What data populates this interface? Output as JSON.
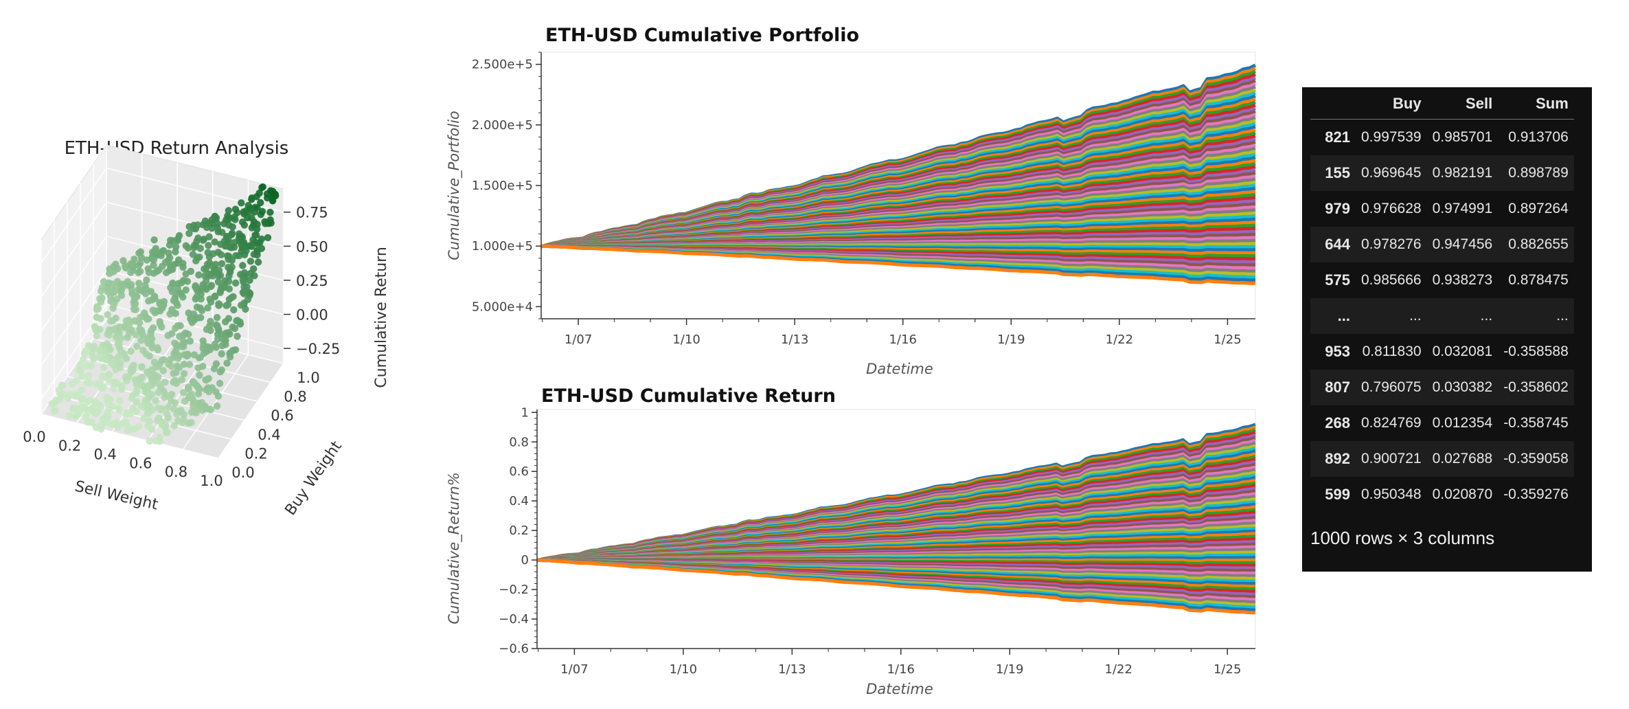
{
  "chart_data": [
    {
      "type": "scatter",
      "title": "ETH-USD Return Analysis",
      "xlabel": "Sell Weight",
      "ylabel": "Buy Weight",
      "zlabel": "Cumulative Return",
      "xticks": [
        "0.0",
        "0.2",
        "0.4",
        "0.6",
        "0.8",
        "1.0"
      ],
      "yticks": [
        "0.0",
        "0.2",
        "0.4",
        "0.6",
        "0.8",
        "1.0"
      ],
      "zticks": [
        "0.75",
        "0.50",
        "0.25",
        "0.00",
        "−0.25"
      ],
      "xlim": [
        0,
        1
      ],
      "ylim": [
        0,
        1
      ],
      "zlim": [
        -0.36,
        0.92
      ],
      "colormap": "Greens",
      "grid": true
    },
    {
      "type": "line",
      "title": "ETH-USD Cumulative Portfolio",
      "xlabel": "Datetime",
      "ylabel": "Cumulative_Portfolio",
      "xticks": [
        "1/07",
        "1/10",
        "1/13",
        "1/16",
        "1/19",
        "1/22",
        "1/25"
      ],
      "yticks": [
        "2.500e+5",
        "2.000e+5",
        "1.500e+5",
        "1.000e+5",
        "5.000e+4"
      ],
      "ylim": [
        40000,
        260000
      ],
      "series_count": 1000,
      "series_summary": {
        "x": [
          "1/06",
          "1/26"
        ],
        "max_end": 248000,
        "min_end": 69000,
        "start": 100000
      }
    },
    {
      "type": "line",
      "title": "ETH-USD Cumulative Return",
      "xlabel": "Datetime",
      "ylabel": "Cumulative_Return%",
      "xticks": [
        "1/07",
        "1/10",
        "1/13",
        "1/16",
        "1/19",
        "1/22",
        "1/25"
      ],
      "yticks": [
        "1",
        "0.8",
        "0.6",
        "0.4",
        "0.2",
        "0",
        "−0.2",
        "−0.4",
        "−0.6"
      ],
      "ylim": [
        -0.6,
        1.02
      ],
      "series_count": 1000,
      "series_summary": {
        "x": [
          "1/06",
          "1/26"
        ],
        "max_end": 0.91,
        "min_end": -0.36,
        "start": 0
      }
    },
    {
      "type": "table",
      "columns": [
        "Buy",
        "Sell",
        "Sum"
      ],
      "rows": [
        {
          "index": "821",
          "values": [
            "0.997539",
            "0.985701",
            "0.913706"
          ]
        },
        {
          "index": "155",
          "values": [
            "0.969645",
            "0.982191",
            "0.898789"
          ]
        },
        {
          "index": "979",
          "values": [
            "0.976628",
            "0.974991",
            "0.897264"
          ]
        },
        {
          "index": "644",
          "values": [
            "0.978276",
            "0.947456",
            "0.882655"
          ]
        },
        {
          "index": "575",
          "values": [
            "0.985666",
            "0.938273",
            "0.878475"
          ]
        },
        {
          "index": "...",
          "values": [
            "...",
            "...",
            "..."
          ]
        },
        {
          "index": "953",
          "values": [
            "0.811830",
            "0.032081",
            "-0.358588"
          ]
        },
        {
          "index": "807",
          "values": [
            "0.796075",
            "0.030382",
            "-0.358602"
          ]
        },
        {
          "index": "268",
          "values": [
            "0.824769",
            "0.012354",
            "-0.358745"
          ]
        },
        {
          "index": "892",
          "values": [
            "0.900721",
            "0.027688",
            "-0.359058"
          ]
        },
        {
          "index": "599",
          "values": [
            "0.950348",
            "0.020870",
            "-0.359276"
          ]
        }
      ],
      "shape_note": "1000 rows × 3 columns"
    }
  ]
}
